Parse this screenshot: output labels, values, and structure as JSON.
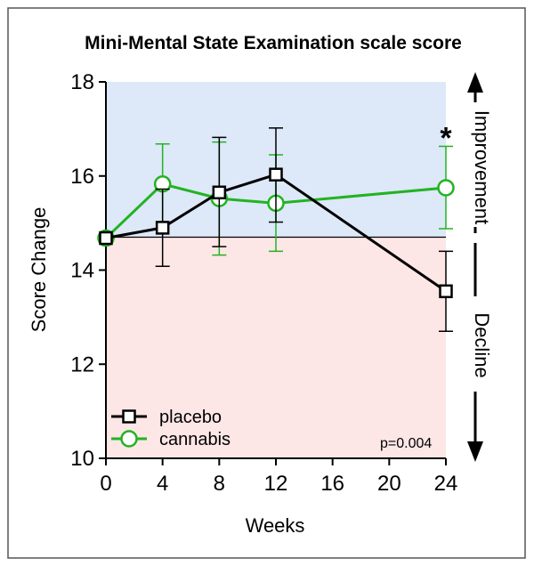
{
  "chart_data": {
    "type": "line",
    "title": "Mini-Mental State Examination scale score",
    "xlabel": "Weeks",
    "ylabel": "Score Change",
    "xlim": [
      0,
      24
    ],
    "ylim": [
      10,
      18
    ],
    "xticks": [
      0,
      4,
      8,
      12,
      16,
      20,
      24
    ],
    "yticks": [
      10,
      12,
      14,
      16,
      18
    ],
    "baseline": 14.7,
    "regions": {
      "above_label": "Improvement",
      "below_label": "Decline",
      "above_color": "#dde8f8",
      "below_color": "#fde6e6"
    },
    "series": [
      {
        "name": "placebo",
        "color": "#000000",
        "marker": "square",
        "x": [
          0,
          4,
          8,
          12,
          24
        ],
        "values": [
          14.68,
          14.9,
          15.65,
          16.03,
          13.55
        ],
        "err_low": [
          14.68,
          14.08,
          14.5,
          15.02,
          12.7
        ],
        "err_high": [
          14.68,
          15.72,
          16.82,
          17.02,
          14.4
        ]
      },
      {
        "name": "cannabis",
        "color": "#22b322",
        "marker": "circle",
        "x": [
          0,
          4,
          8,
          12,
          24
        ],
        "values": [
          14.68,
          15.83,
          15.52,
          15.42,
          15.75
        ],
        "err_low": [
          14.68,
          15.0,
          14.32,
          14.4,
          14.88
        ],
        "err_high": [
          14.68,
          16.68,
          16.72,
          16.45,
          16.63
        ]
      }
    ],
    "annotations": {
      "significance_marker": "*",
      "significance_x": 24,
      "p_value": "p=0.004"
    }
  }
}
